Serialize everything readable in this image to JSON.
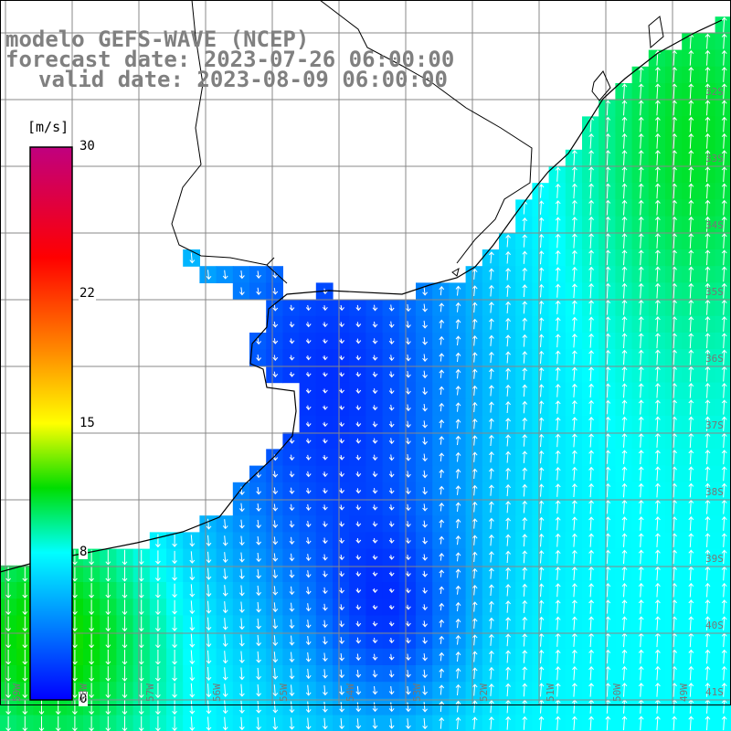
{
  "title": {
    "line1": "modelo GEFS-WAVE (NCEP)",
    "line2": "forecast date: 2023-07-26 06:00:00",
    "line3": "valid date: 2023-08-09 06:00:00"
  },
  "colorbar": {
    "unit": "[m/s]",
    "ticks": [
      {
        "label": "30",
        "value": 30
      },
      {
        "label": "22",
        "value": 22
      },
      {
        "label": "15",
        "value": 15
      },
      {
        "label": "8",
        "value": 8
      },
      {
        "label": "0",
        "value": 0
      }
    ],
    "stops": [
      {
        "value": 0,
        "color": "#0000ff"
      },
      {
        "value": 8,
        "color": "#00ffff"
      },
      {
        "value": 11.5,
        "color": "#00dd00"
      },
      {
        "value": 15,
        "color": "#ffff00"
      },
      {
        "value": 19,
        "color": "#ff8800"
      },
      {
        "value": 24,
        "color": "#ff0000"
      },
      {
        "value": 30,
        "color": "#c0007f"
      }
    ]
  },
  "lat_labels": [
    "32S",
    "33S",
    "34S",
    "35S",
    "36S",
    "37S",
    "38S",
    "39S",
    "40S",
    "41S"
  ],
  "lon_labels": [
    "59W",
    "58W",
    "57W",
    "56W",
    "55W",
    "54W",
    "53W",
    "52W",
    "51W",
    "50W",
    "49W"
  ],
  "colors": {
    "grid": "#888888",
    "coast": "#000000",
    "land": "#ffffff",
    "arrow": "#ffffff"
  }
}
